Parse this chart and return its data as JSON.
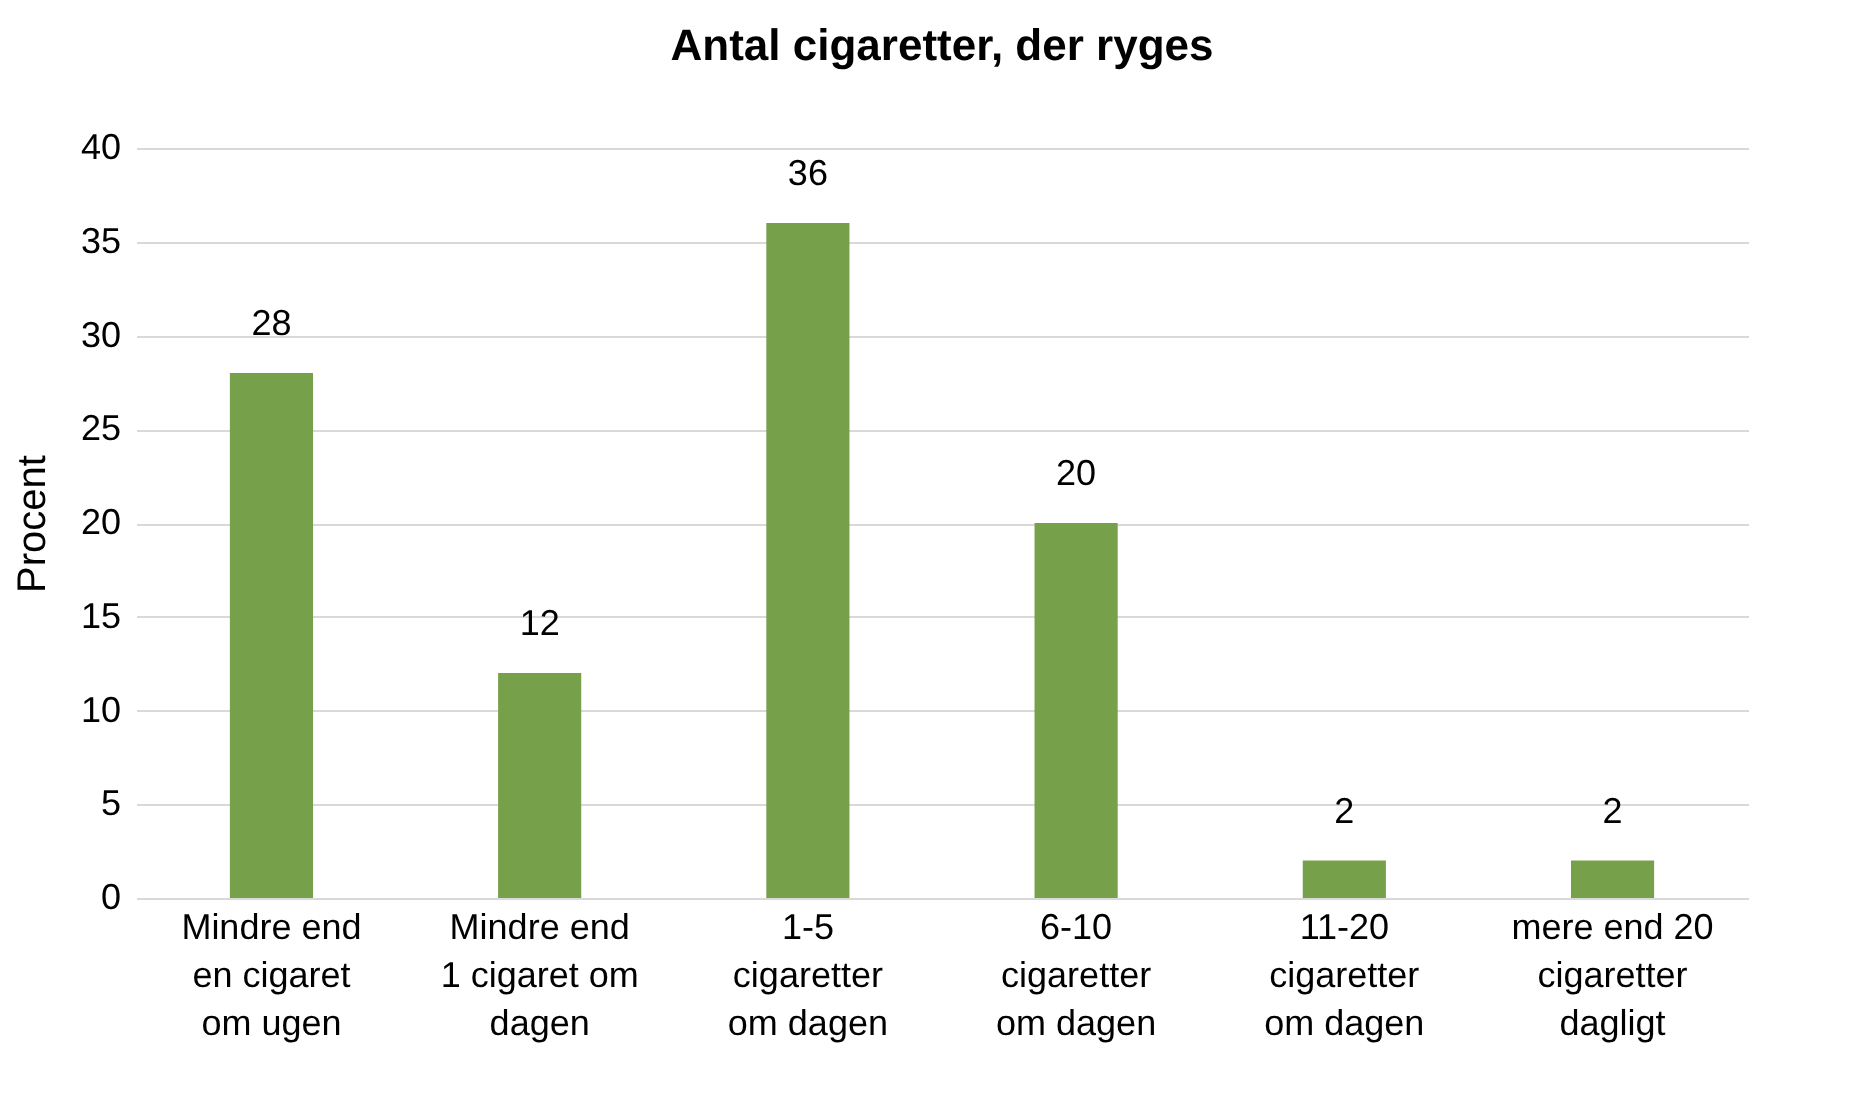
{
  "chart_data": {
    "type": "bar",
    "title": "Antal cigaretter, der ryges",
    "ylabel": "Procent",
    "categories": [
      "Mindre end\nen cigaret\nom ugen",
      "Mindre end\n1 cigaret om\ndagen",
      "1-5\ncigaretter\nom dagen",
      "6-10\ncigaretter\nom dagen",
      "11-20\ncigaretter\nom dagen",
      "mere end 20\ncigaretter\ndagligt"
    ],
    "values": [
      28,
      12,
      36,
      20,
      2,
      2
    ],
    "color": "#77a04a",
    "ylim": [
      0,
      40
    ],
    "yticks": [
      0,
      5,
      10,
      15,
      20,
      25,
      30,
      35,
      40
    ],
    "grid": "y",
    "data_labels": true
  }
}
